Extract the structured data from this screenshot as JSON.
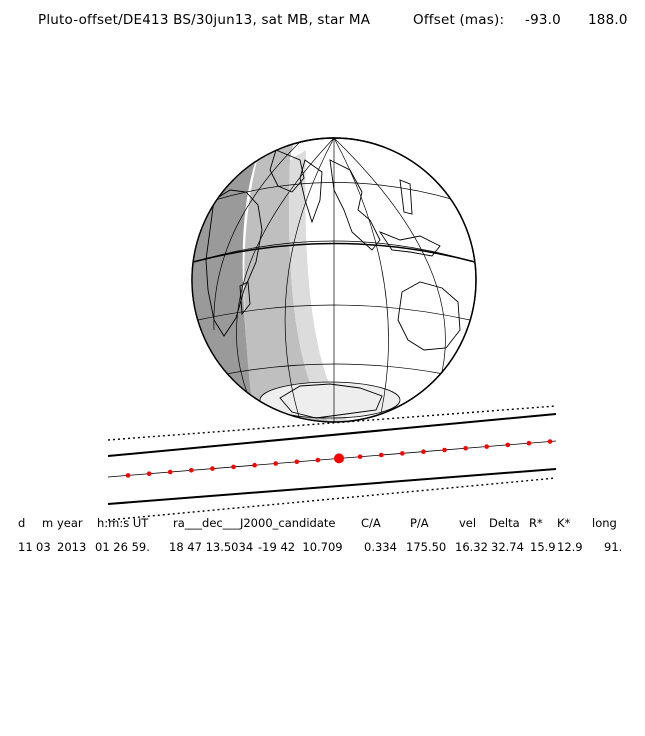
{
  "header": {
    "title": "Pluto-offset/DE413 BS/30jun13, sat MB, star MA",
    "offset_label": "Offset (mas):",
    "offset_x": "-93.0",
    "offset_y": "188.0"
  },
  "map": {
    "globe_fill": "#c8c8c8",
    "shadow_fill": "#9a9a9a",
    "band_fill": "#bfbfbf",
    "night_fill": "#eeeeee",
    "track_color": "#ff0000"
  },
  "table": {
    "labels": [
      "d",
      "m",
      "year",
      "h:m:s UT",
      "ra___dec___J2000_candidate",
      "C/A",
      "P/A",
      "vel",
      "Delta",
      "R*",
      "K*",
      "long"
    ],
    "values": [
      "11",
      "03",
      "2013",
      "01 26 59.",
      "18 47 13.5034",
      "-19 42  10.709",
      "0.334",
      "175.50",
      "16.32",
      "32.74",
      "15.9",
      "12.9",
      "91."
    ]
  }
}
